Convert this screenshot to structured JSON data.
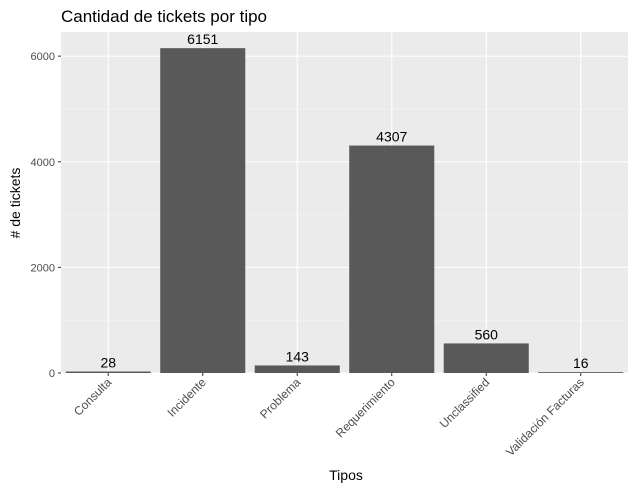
{
  "chart_data": {
    "type": "bar",
    "title": "Cantidad de tickets por tipo",
    "xlabel": "Tipos",
    "ylabel": "# de tickets",
    "categories": [
      "Consulta",
      "Incidente",
      "Problema",
      "Requerimiento",
      "Unclassified",
      "Validación Facturas"
    ],
    "values": [
      28,
      6151,
      143,
      4307,
      560,
      16
    ],
    "data_labels": [
      "28",
      "6151",
      "143",
      "4307",
      "560",
      "16"
    ],
    "ylim": [
      0,
      6457
    ],
    "yticks": [
      0,
      2000,
      4000,
      6000
    ],
    "ytick_labels": [
      "0",
      "2000",
      "4000",
      "6000"
    ],
    "grid": true,
    "legend": "none",
    "colors": {
      "panel": "#ebebeb",
      "bar": "#595959",
      "grid_major": "#ffffff",
      "grid_minor": "#f5f5f5"
    }
  }
}
